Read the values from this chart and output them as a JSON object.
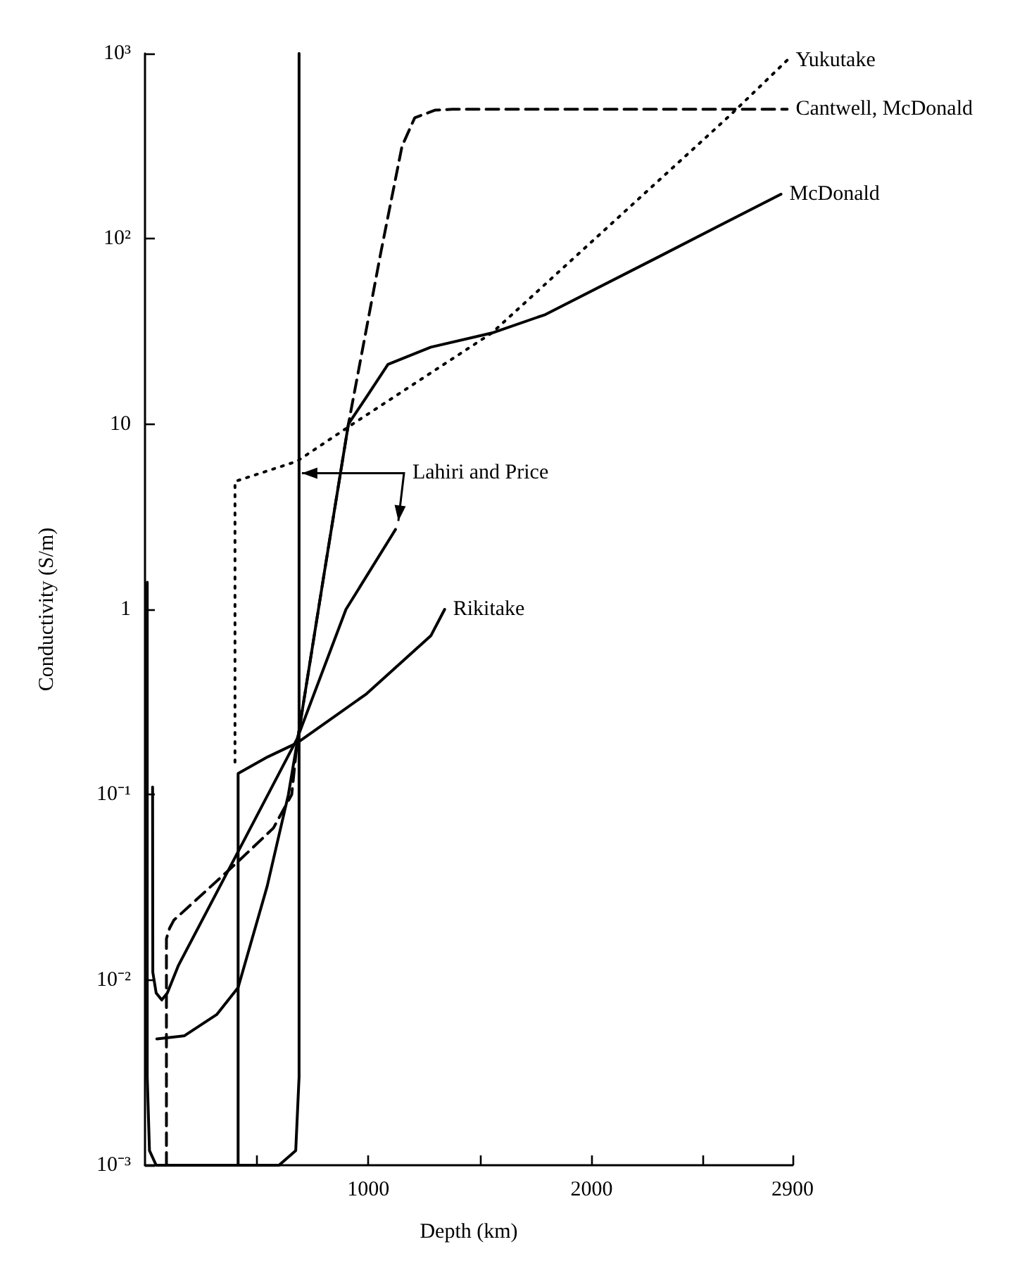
{
  "chart_data": {
    "type": "line",
    "xlabel": "Depth (km)",
    "ylabel": "Conductivity (S/m)",
    "xlim": [
      0,
      2900
    ],
    "xticks": [
      {
        "value": 500,
        "label": null
      },
      1000,
      {
        "value": 1500,
        "label": null
      },
      2000,
      {
        "value": 2500,
        "label": null
      },
      2900
    ],
    "ylim": [
      0.001,
      1000
    ],
    "log": true,
    "yticks": [
      {
        "value": 0.001,
        "label": "10⁻³"
      },
      {
        "value": 0.01,
        "label": "10⁻²"
      },
      {
        "value": 0.1,
        "label": "10⁻¹"
      },
      1,
      10,
      {
        "value": 100,
        "label": "10²"
      },
      {
        "value": 1000,
        "label": "10³"
      }
    ],
    "grid": false,
    "legend": false,
    "marker": "none",
    "series": [
      {
        "name": "Cantwell, McDonald",
        "color": "#000000",
        "line_style": "dashed",
        "x": [
          96,
          96,
          110,
          129,
          403,
          575,
          657,
          681,
          800,
          911,
          1055,
          1151,
          1208,
          1300,
          1376,
          2876
        ],
        "values": [
          0.001,
          0.0167,
          0.019,
          0.021,
          0.042,
          0.066,
          0.1,
          0.19,
          1.5,
          10,
          83,
          316,
          450,
          495,
          500,
          500
        ]
      },
      {
        "name": "Yukutake",
        "color": "#000000",
        "line_style": "dotted",
        "x": [
          403,
          403,
          681,
          930,
          1553,
          2622,
          2876
        ],
        "values": [
          0.15,
          4.9,
          6.3,
          10,
          31,
          466,
          920
        ]
      },
      {
        "name": "McDonald",
        "color": "#000000",
        "line_style": "solid",
        "x": [
          53,
          177,
          321,
          417,
          547,
          642,
          681,
          800,
          911,
          992,
          1088,
          1280,
          1553,
          1793,
          2301,
          2848
        ],
        "values": [
          0.0048,
          0.005,
          0.0065,
          0.0091,
          0.032,
          0.1,
          0.19,
          1.5,
          10,
          14,
          21,
          26,
          31,
          39,
          80,
          174
        ]
      },
      {
        "name": "Lahiri and Price",
        "color": "#000000",
        "line_style": "solid",
        "x": [
          10,
          10,
          20,
          50,
          600,
          675,
          690,
          690,
          null,
          34,
          35,
          50,
          75,
          100,
          150,
          400,
          681,
          900,
          1122
        ],
        "values": [
          1.4,
          0.003,
          0.0012,
          0.001,
          0.001,
          0.0012,
          0.003,
          1000,
          null,
          0.11,
          0.011,
          0.0085,
          0.0078,
          0.0085,
          0.012,
          0.045,
          0.2,
          1.0,
          2.7
        ]
      },
      {
        "name": "Rikitake",
        "color": "#000000",
        "line_style": "solid",
        "x": [
          417,
          417,
          550,
          681,
          992,
          1280,
          1342
        ],
        "values": [
          0.001,
          0.13,
          0.16,
          0.19,
          0.35,
          0.72,
          1.0
        ]
      }
    ]
  }
}
